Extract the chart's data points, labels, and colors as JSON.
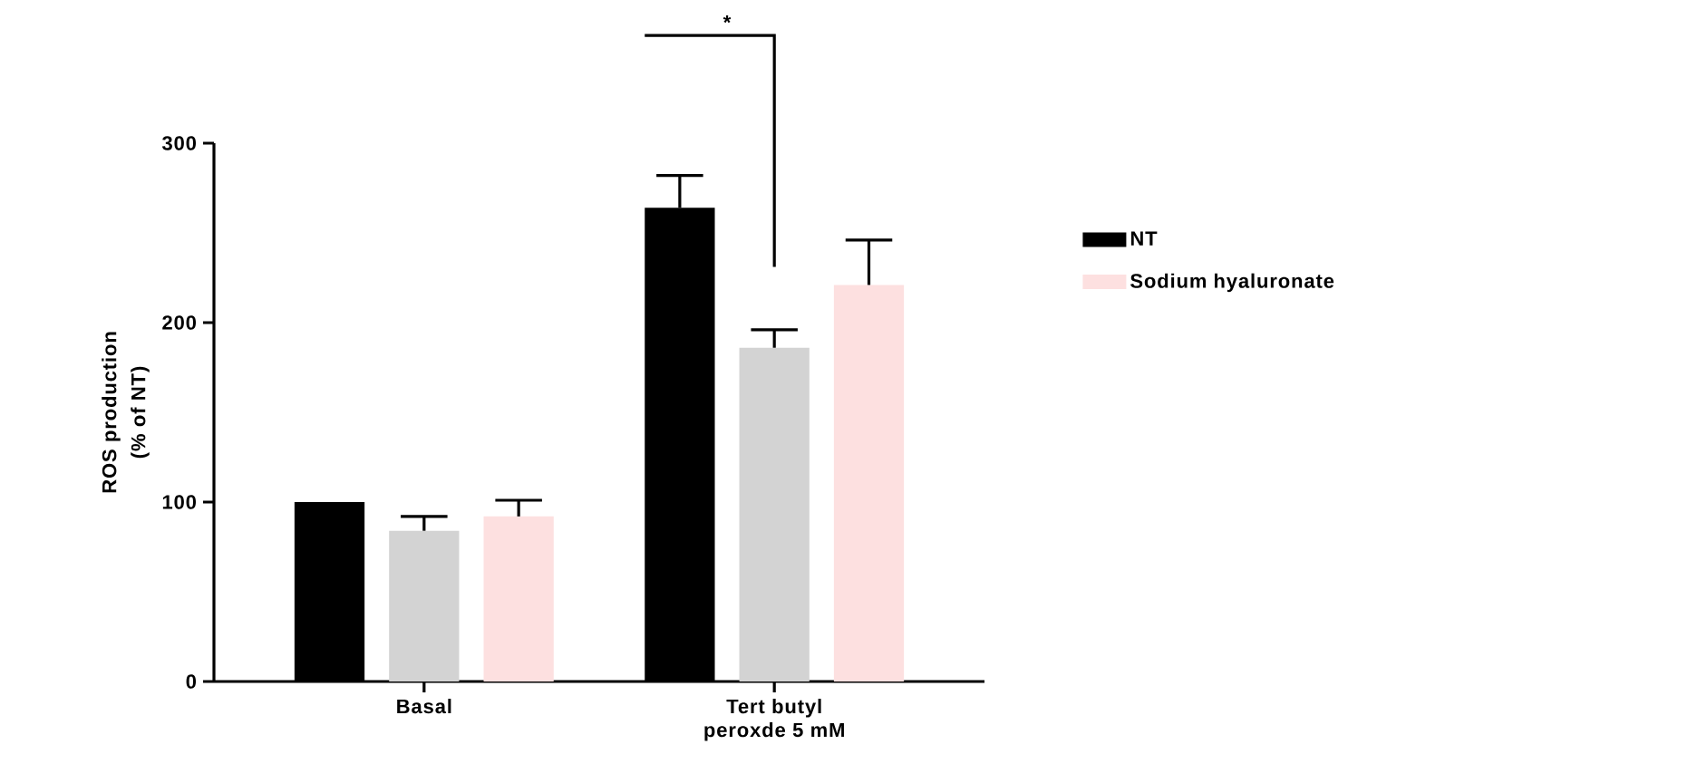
{
  "chart_data": {
    "type": "bar",
    "ylabel": "ROS production (% of NT)",
    "categories": [
      "Basal",
      "Tert butyl peroxde 5 mM"
    ],
    "series": [
      {
        "name": "NT",
        "color": "#000000",
        "values": [
          100,
          264
        ],
        "errors": [
          null,
          [
            264,
            282
          ]
        ]
      },
      {
        "color": "#d3d3d3",
        "values": [
          84,
          186
        ],
        "errors": [
          [
            84,
            92
          ],
          [
            186,
            196
          ]
        ]
      },
      {
        "name": "Sodium hyaluronate",
        "color": "#fde0e0",
        "values": [
          92,
          221
        ],
        "errors": [
          [
            92,
            101
          ],
          [
            221,
            246
          ]
        ]
      }
    ],
    "ylim": [
      0,
      300
    ],
    "yticks": [
      0,
      100,
      200,
      300
    ],
    "grid": false,
    "legend": "right",
    "annotations": [
      "*"
    ]
  }
}
